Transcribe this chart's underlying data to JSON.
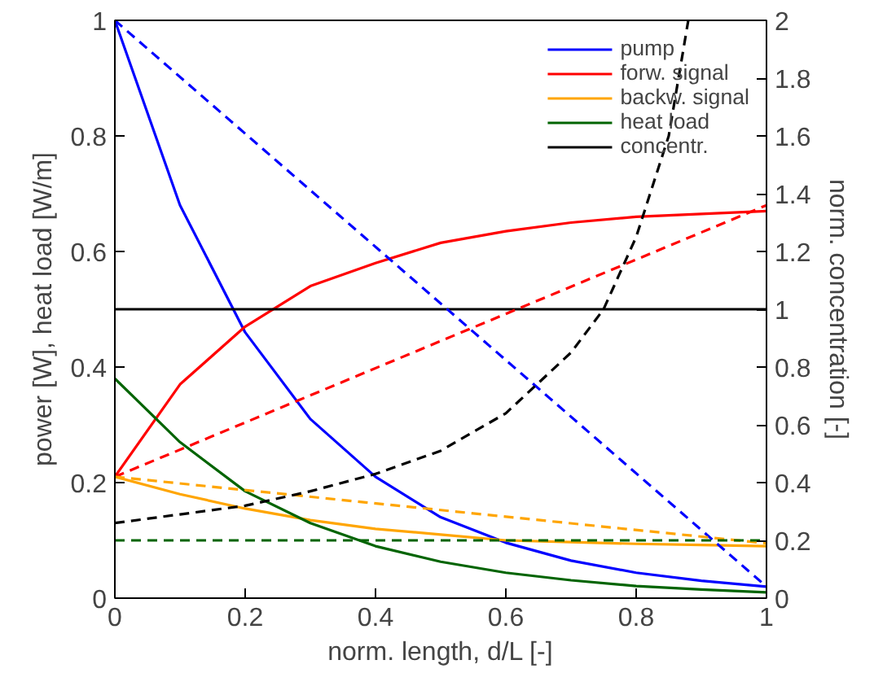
{
  "chart_data": {
    "type": "line",
    "xlabel": "norm. length, d/L [-]",
    "ylabel": "power [W], heat load [W/m]",
    "y2label": "norm. concentration [-]",
    "x": [
      0,
      0.1,
      0.2,
      0.3,
      0.4,
      0.5,
      0.6,
      0.7,
      0.8,
      0.9,
      1
    ],
    "xlim": [
      0,
      1
    ],
    "xticks": [
      0,
      0.2,
      0.4,
      0.6,
      0.8,
      1
    ],
    "ylim": [
      0,
      1
    ],
    "yticks": [
      0,
      0.2,
      0.4,
      0.6,
      0.8,
      1
    ],
    "y2lim": [
      0,
      2
    ],
    "y2ticks": [
      0,
      0.2,
      0.4,
      0.6,
      0.8,
      1,
      1.2,
      1.4,
      1.6,
      1.8,
      2
    ],
    "grid": false,
    "legend": "top right",
    "series": [
      {
        "name": "pump",
        "color": "#0000ff",
        "line_style": "solid",
        "values": [
          1,
          0.68,
          0.46,
          0.31,
          0.21,
          0.14,
          0.096,
          0.065,
          0.044,
          0.03,
          0.02
        ]
      },
      {
        "name": "forw. signal",
        "color": "#ff0000",
        "line_style": "solid",
        "values": [
          0.21,
          0.37,
          0.47,
          0.54,
          0.58,
          0.615,
          0.635,
          0.65,
          0.66,
          0.665,
          0.67
        ]
      },
      {
        "name": "backw. signal",
        "color": "#ffa500",
        "line_style": "solid",
        "values": [
          0.21,
          0.18,
          0.155,
          0.135,
          0.12,
          0.11,
          0.1,
          0.097,
          0.094,
          0.092,
          0.09
        ]
      },
      {
        "name": "heat load",
        "color": "#006400",
        "line_style": "solid",
        "values": [
          0.38,
          0.27,
          0.185,
          0.13,
          0.09,
          0.063,
          0.044,
          0.031,
          0.021,
          0.015,
          0.01
        ]
      },
      {
        "name": "concentr.",
        "color": "#000000",
        "line_style": "solid",
        "axis": "y2",
        "x": [
          0,
          1
        ],
        "values": [
          1,
          1
        ]
      },
      {
        "color": "#0000ff",
        "line_style": "dashed",
        "x": [
          0,
          1
        ],
        "values": [
          1,
          0.02
        ]
      },
      {
        "color": "#ff0000",
        "line_style": "dashed",
        "x": [
          0,
          1
        ],
        "values": [
          0.21,
          0.68
        ]
      },
      {
        "color": "#ffa500",
        "line_style": "dashed",
        "x": [
          0,
          1
        ],
        "values": [
          0.21,
          0.095
        ]
      },
      {
        "color": "#006400",
        "line_style": "dashed",
        "x": [
          0,
          1
        ],
        "values": [
          0.1,
          0.1
        ]
      },
      {
        "color": "#000000",
        "line_style": "dashed",
        "axis": "y2",
        "x": [
          0,
          0.1,
          0.2,
          0.3,
          0.4,
          0.5,
          0.6,
          0.7,
          0.75,
          0.8,
          0.85,
          0.88
        ],
        "values": [
          0.26,
          0.29,
          0.32,
          0.37,
          0.43,
          0.51,
          0.64,
          0.85,
          1.0,
          1.25,
          1.6,
          2.0
        ]
      }
    ]
  }
}
